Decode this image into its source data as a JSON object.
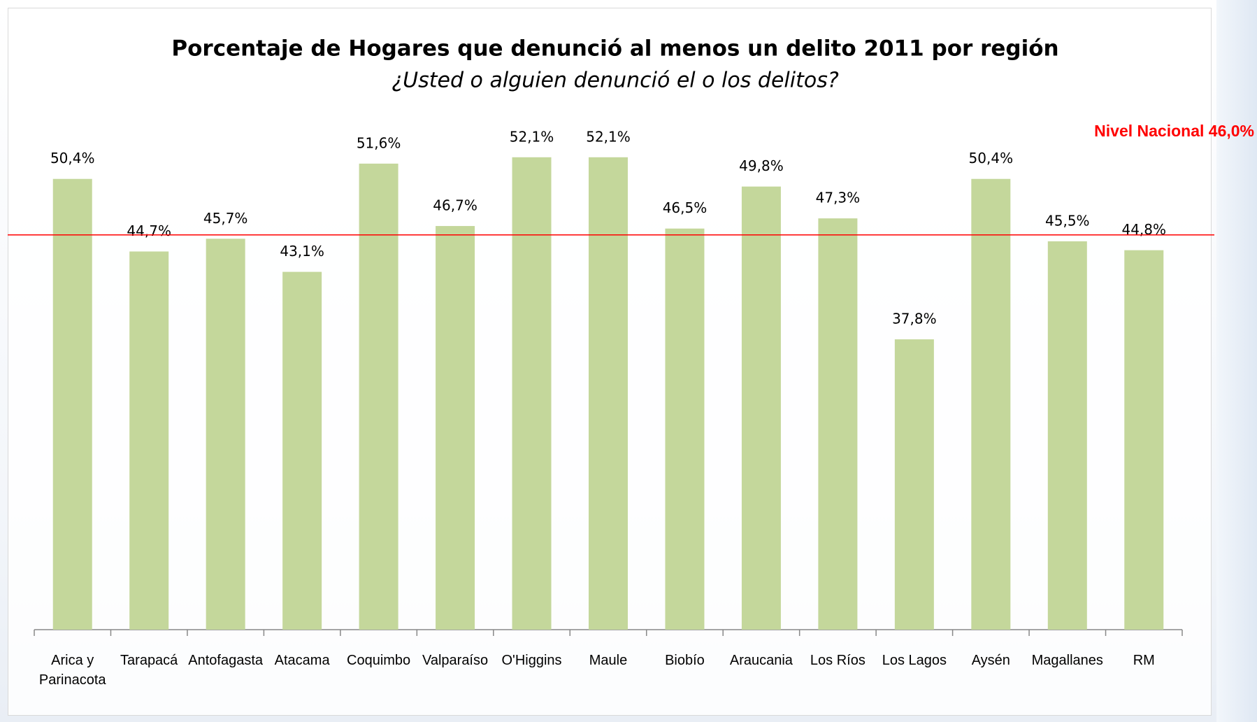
{
  "chart_data": {
    "type": "bar",
    "title": "Porcentaje de Hogares que denunció al menos un delito 2011 por región",
    "subtitle": "¿Usted o alguien denunció el o los delitos?",
    "categories": [
      "Arica y Parinacota",
      "Tarapacá",
      "Antofagasta",
      "Atacama",
      "Coquimbo",
      "Valparaíso",
      "O'Higgins",
      "Maule",
      "Biobío",
      "Araucania",
      "Los Ríos",
      "Los Lagos",
      "Aysén",
      "Magallanes",
      "RM"
    ],
    "values": [
      50.4,
      44.7,
      45.7,
      43.1,
      51.6,
      46.7,
      52.1,
      52.1,
      46.5,
      49.8,
      47.3,
      37.8,
      50.4,
      45.5,
      44.8
    ],
    "value_labels": [
      "50,4%",
      "44,7%",
      "45,7%",
      "43,1%",
      "51,6%",
      "46,7%",
      "52,1%",
      "52,1%",
      "46,5%",
      "49,8%",
      "47,3%",
      "37,8%",
      "50,4%",
      "45,5%",
      "44,8%"
    ],
    "color": "#c4d79b",
    "ylim": [
      15,
      60
    ],
    "reference_line": {
      "value": 46.0,
      "label": "Nivel Nacional 46,0%",
      "color": "#ff0000"
    }
  }
}
